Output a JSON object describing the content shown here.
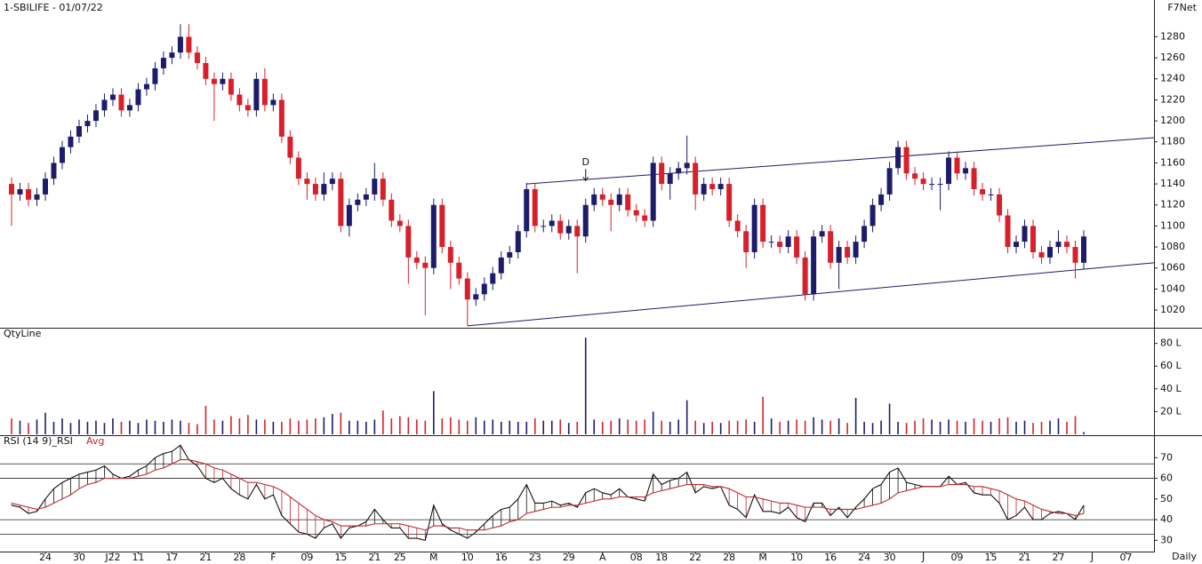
{
  "chart_data": [
    {
      "type": "candlestick",
      "title": "1-SBILIFE - 01/07/22",
      "corner_label": "F7Net",
      "up_color": "#1c1c6b",
      "down_color": "#d8202a",
      "xlim": [
        -1.37,
        135.32
      ],
      "ylim": [
        1004,
        1315
      ],
      "yticks": [
        1020,
        1040,
        1060,
        1080,
        1100,
        1120,
        1140,
        1160,
        1180,
        1200,
        1220,
        1240,
        1260,
        1280
      ],
      "open": [
        1140,
        1130,
        1135,
        1125,
        1130,
        1145,
        1160,
        1175,
        1185,
        1195,
        1200,
        1210,
        1220,
        1225,
        1210,
        1215,
        1230,
        1235,
        1250,
        1260,
        1265,
        1280,
        1265,
        1255,
        1240,
        1235,
        1240,
        1225,
        1215,
        1210,
        1240,
        1215,
        1220,
        1185,
        1165,
        1145,
        1140,
        1130,
        1140,
        1145,
        1100,
        1120,
        1125,
        1130,
        1145,
        1125,
        1105,
        1100,
        1070,
        1065,
        1060,
        1120,
        1080,
        1065,
        1050,
        1030,
        1035,
        1045,
        1055,
        1070,
        1075,
        1095,
        1135,
        1100,
        1100,
        1105,
        1093,
        1100,
        1090,
        1120,
        1130,
        1125,
        1120,
        1130,
        1115,
        1110,
        1105,
        1160,
        1140,
        1150,
        1155,
        1160,
        1130,
        1140,
        1135,
        1140,
        1105,
        1095,
        1075,
        1120,
        1085,
        1085,
        1080,
        1090,
        1070,
        1035,
        1090,
        1095,
        1065,
        1080,
        1070,
        1085,
        1100,
        1120,
        1130,
        1155,
        1175,
        1150,
        1145,
        1140,
        1140,
        1140,
        1165,
        1150,
        1155,
        1135,
        1130,
        1130,
        1110,
        1080,
        1085,
        1100,
        1075,
        1070,
        1080,
        1085,
        1080,
        1065
      ],
      "high": [
        1146,
        1141,
        1141,
        1136,
        1151,
        1166,
        1181,
        1191,
        1201,
        1206,
        1216,
        1226,
        1231,
        1231,
        1221,
        1236,
        1241,
        1256,
        1266,
        1271,
        1292,
        1292,
        1271,
        1261,
        1246,
        1246,
        1246,
        1231,
        1221,
        1246,
        1250,
        1226,
        1226,
        1191,
        1171,
        1151,
        1146,
        1151,
        1151,
        1151,
        1126,
        1131,
        1136,
        1160,
        1151,
        1131,
        1111,
        1106,
        1076,
        1071,
        1126,
        1126,
        1086,
        1071,
        1056,
        1041,
        1051,
        1061,
        1076,
        1081,
        1101,
        1141,
        1141,
        1106,
        1111,
        1111,
        1106,
        1106,
        1126,
        1136,
        1136,
        1131,
        1136,
        1136,
        1121,
        1116,
        1166,
        1166,
        1156,
        1161,
        1186,
        1166,
        1146,
        1146,
        1146,
        1146,
        1111,
        1101,
        1126,
        1126,
        1091,
        1091,
        1096,
        1096,
        1076,
        1096,
        1101,
        1101,
        1086,
        1086,
        1091,
        1106,
        1126,
        1136,
        1161,
        1181,
        1181,
        1156,
        1151,
        1146,
        1146,
        1171,
        1171,
        1161,
        1161,
        1141,
        1136,
        1136,
        1116,
        1091,
        1106,
        1106,
        1081,
        1086,
        1096,
        1091,
        1086,
        1096
      ],
      "low": [
        1100,
        1124,
        1119,
        1119,
        1124,
        1139,
        1154,
        1169,
        1179,
        1189,
        1194,
        1204,
        1214,
        1204,
        1204,
        1209,
        1224,
        1229,
        1244,
        1254,
        1259,
        1259,
        1249,
        1234,
        1200,
        1229,
        1219,
        1209,
        1204,
        1204,
        1209,
        1209,
        1179,
        1159,
        1139,
        1125,
        1124,
        1124,
        1134,
        1094,
        1090,
        1114,
        1119,
        1124,
        1119,
        1099,
        1094,
        1045,
        1059,
        1015,
        1054,
        1074,
        1040,
        1044,
        1005,
        1024,
        1029,
        1039,
        1049,
        1064,
        1069,
        1089,
        1094,
        1094,
        1094,
        1087,
        1087,
        1055,
        1084,
        1114,
        1119,
        1095,
        1114,
        1109,
        1104,
        1099,
        1099,
        1134,
        1125,
        1144,
        1149,
        1115,
        1124,
        1129,
        1129,
        1099,
        1089,
        1060,
        1069,
        1079,
        1079,
        1074,
        1074,
        1064,
        1029,
        1029,
        1084,
        1059,
        1040,
        1064,
        1064,
        1079,
        1094,
        1114,
        1124,
        1149,
        1144,
        1139,
        1134,
        1134,
        1115,
        1134,
        1144,
        1144,
        1129,
        1124,
        1124,
        1104,
        1074,
        1074,
        1079,
        1069,
        1064,
        1064,
        1074,
        1074,
        1050,
        1059
      ],
      "close": [
        1130,
        1135,
        1125,
        1130,
        1145,
        1160,
        1175,
        1185,
        1195,
        1200,
        1210,
        1220,
        1225,
        1210,
        1215,
        1230,
        1235,
        1250,
        1260,
        1265,
        1280,
        1265,
        1255,
        1240,
        1235,
        1240,
        1225,
        1215,
        1210,
        1240,
        1215,
        1220,
        1185,
        1165,
        1145,
        1140,
        1130,
        1140,
        1145,
        1100,
        1120,
        1125,
        1130,
        1145,
        1125,
        1105,
        1100,
        1070,
        1065,
        1060,
        1120,
        1080,
        1065,
        1050,
        1030,
        1035,
        1045,
        1055,
        1070,
        1075,
        1095,
        1135,
        1100,
        1100,
        1105,
        1093,
        1100,
        1090,
        1120,
        1130,
        1125,
        1120,
        1130,
        1115,
        1110,
        1105,
        1160,
        1140,
        1150,
        1155,
        1160,
        1130,
        1140,
        1135,
        1140,
        1105,
        1095,
        1075,
        1120,
        1085,
        1085,
        1080,
        1090,
        1070,
        1035,
        1090,
        1095,
        1065,
        1080,
        1070,
        1085,
        1100,
        1120,
        1130,
        1155,
        1175,
        1150,
        1145,
        1140,
        1140,
        1140,
        1165,
        1150,
        1155,
        1135,
        1130,
        1130,
        1110,
        1080,
        1085,
        1100,
        1075,
        1070,
        1080,
        1085,
        1080,
        1065,
        1090
      ],
      "trendlines": [
        {
          "from": [
            61,
            1140
          ],
          "to": [
            135.32,
            1184
          ]
        },
        {
          "from": [
            54,
            1005
          ],
          "to": [
            135.32,
            1065
          ]
        }
      ],
      "annotations": [
        {
          "text": "D",
          "x": 68,
          "y": 1150
        }
      ]
    },
    {
      "type": "bar",
      "title": "QtyLine",
      "xlim": [
        -1.37,
        135.32
      ],
      "ylim": [
        0,
        93
      ],
      "yticks": [
        {
          "value": 20,
          "label": "20 L"
        },
        {
          "value": 40,
          "label": "40 L"
        },
        {
          "value": 60,
          "label": "60 L"
        },
        {
          "value": 80,
          "label": "80 L"
        }
      ],
      "values": [
        14,
        12,
        10,
        13,
        19,
        11,
        14,
        10,
        13,
        11,
        12,
        10,
        14,
        11,
        12,
        10,
        13,
        12,
        11,
        13,
        12,
        10,
        9,
        25,
        13,
        12,
        16,
        14,
        17,
        13,
        13,
        11,
        11,
        14,
        12,
        13,
        14,
        15,
        18,
        19,
        12,
        12,
        11,
        13,
        21,
        14,
        16,
        15,
        13,
        12,
        38,
        14,
        15,
        13,
        12,
        15,
        12,
        13,
        11,
        12,
        11,
        11,
        14,
        12,
        12,
        13,
        10,
        11,
        85,
        13,
        11,
        12,
        14,
        13,
        12,
        13,
        20,
        12,
        11,
        13,
        30,
        12,
        10,
        11,
        10,
        12,
        12,
        13,
        11,
        33,
        14,
        11,
        12,
        13,
        12,
        15,
        13,
        12,
        14,
        10,
        32,
        11,
        10,
        12,
        27,
        11,
        10,
        12,
        14,
        13,
        11,
        13,
        12,
        11,
        14,
        12,
        11,
        14,
        15,
        11,
        12,
        10,
        11,
        12,
        14,
        11,
        16,
        2
      ]
    },
    {
      "type": "line",
      "x_label": "Daily",
      "xlim": [
        -1.37,
        135.32
      ],
      "ylim": [
        25,
        80
      ],
      "yticks": [
        30,
        40,
        50,
        60,
        70
      ],
      "levels": [
        67,
        60,
        40,
        33
      ],
      "xticks": [
        {
          "value": 4,
          "label": "24"
        },
        {
          "value": 8,
          "label": "30"
        },
        {
          "value": 12,
          "label": "J22"
        },
        {
          "value": 15,
          "label": "11"
        },
        {
          "value": 19,
          "label": "17"
        },
        {
          "value": 23,
          "label": "21"
        },
        {
          "value": 27,
          "label": "28"
        },
        {
          "value": 31,
          "label": "F"
        },
        {
          "value": 35,
          "label": "09"
        },
        {
          "value": 39,
          "label": "15"
        },
        {
          "value": 43,
          "label": "21"
        },
        {
          "value": 46,
          "label": "25"
        },
        {
          "value": 50,
          "label": "M"
        },
        {
          "value": 54,
          "label": "10"
        },
        {
          "value": 58,
          "label": "16"
        },
        {
          "value": 62,
          "label": "23"
        },
        {
          "value": 66,
          "label": "29"
        },
        {
          "value": 70,
          "label": "A"
        },
        {
          "value": 74,
          "label": "08"
        },
        {
          "value": 77,
          "label": "18"
        },
        {
          "value": 81,
          "label": "22"
        },
        {
          "value": 85,
          "label": "28"
        },
        {
          "value": 89,
          "label": "M"
        },
        {
          "value": 93,
          "label": "10"
        },
        {
          "value": 97,
          "label": "16"
        },
        {
          "value": 101,
          "label": "24"
        },
        {
          "value": 104,
          "label": "30"
        },
        {
          "value": 108,
          "label": "J"
        },
        {
          "value": 112,
          "label": "09"
        },
        {
          "value": 116,
          "label": "15"
        },
        {
          "value": 120,
          "label": "21"
        },
        {
          "value": 124,
          "label": "27"
        },
        {
          "value": 128,
          "label": "J"
        },
        {
          "value": 132,
          "label": "07"
        }
      ],
      "series": [
        {
          "name": "RSI (14 9)_RSI",
          "color": "#111111",
          "values": [
            47,
            46,
            43,
            44,
            50,
            55,
            58,
            60,
            62,
            63,
            64,
            66,
            62,
            60,
            61,
            64,
            66,
            70,
            72,
            73,
            76,
            69,
            66,
            60,
            58,
            60,
            55,
            52,
            50,
            57,
            50,
            52,
            42,
            38,
            34,
            33,
            31,
            36,
            38,
            31,
            36,
            37,
            39,
            45,
            40,
            36,
            36,
            31,
            31,
            30,
            47,
            38,
            35,
            33,
            31,
            34,
            38,
            42,
            45,
            46,
            50,
            57,
            48,
            48,
            49,
            47,
            48,
            46,
            53,
            55,
            53,
            52,
            55,
            51,
            50,
            49,
            62,
            57,
            59,
            60,
            63,
            53,
            56,
            55,
            56,
            47,
            45,
            41,
            52,
            44,
            44,
            43,
            46,
            41,
            39,
            48,
            48,
            42,
            46,
            41,
            46,
            50,
            55,
            57,
            63,
            65,
            58,
            57,
            56,
            56,
            56,
            61,
            57,
            58,
            53,
            52,
            52,
            48,
            40,
            42,
            46,
            40,
            40,
            43,
            44,
            43,
            40,
            47
          ]
        },
        {
          "name": "Avg",
          "color": "#c0282d",
          "values": [
            48,
            47,
            46,
            45,
            46,
            48,
            50,
            52,
            55,
            57,
            58,
            60,
            60,
            60,
            60,
            61,
            62,
            64,
            65,
            67,
            69,
            69,
            68,
            67,
            65,
            64,
            62,
            60,
            58,
            58,
            57,
            56,
            54,
            51,
            48,
            45,
            42,
            40,
            39,
            37,
            37,
            37,
            37,
            38,
            38,
            38,
            38,
            37,
            36,
            35,
            37,
            37,
            36,
            36,
            35,
            35,
            35,
            36,
            37,
            39,
            40,
            43,
            44,
            45,
            46,
            46,
            47,
            47,
            48,
            49,
            50,
            50,
            51,
            51,
            51,
            51,
            53,
            54,
            55,
            56,
            57,
            57,
            57,
            56,
            56,
            55,
            53,
            51,
            51,
            50,
            49,
            48,
            48,
            47,
            46,
            46,
            46,
            45,
            45,
            45,
            45,
            46,
            47,
            48,
            50,
            53,
            54,
            55,
            56,
            56,
            56,
            57,
            57,
            57,
            56,
            56,
            55,
            54,
            52,
            50,
            49,
            47,
            45,
            44,
            43,
            43,
            42,
            43
          ]
        }
      ]
    }
  ]
}
